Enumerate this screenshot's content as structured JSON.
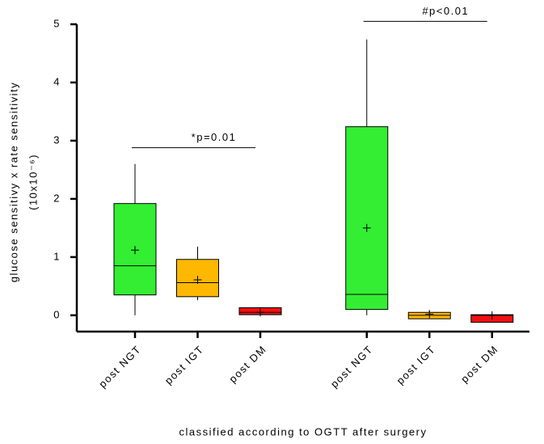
{
  "chart_data": {
    "type": "box",
    "ylabel": "glucose sensitivy x rate sensitivity",
    "ylabel2": "(10x10⁻⁶)",
    "xlabel": "classified according to OGTT after surgery",
    "categories": [
      "post NGT",
      "post IGT",
      "post DM",
      "post NGT",
      "post IGT",
      "post DM"
    ],
    "boxes": [
      {
        "min": 0,
        "q1": 0.35,
        "median": 0.85,
        "q3": 1.92,
        "max": 2.6,
        "mean": 1.12,
        "color": "#33ee33"
      },
      {
        "min": 0.26,
        "q1": 0.32,
        "median": 0.56,
        "q3": 0.96,
        "max": 1.18,
        "mean": 0.61,
        "color": "#ffb800"
      },
      {
        "min": 0,
        "q1": 0.01,
        "median": 0.05,
        "q3": 0.13,
        "max": 0.14,
        "mean": 0.05,
        "color": "#ee1111"
      },
      {
        "min": 0,
        "q1": 0.1,
        "median": 0.36,
        "q3": 3.24,
        "max": 4.74,
        "mean": 1.5,
        "color": "#33ee33"
      },
      {
        "min": -0.06,
        "q1": -0.06,
        "median": 0,
        "q3": 0.05,
        "max": 0.08,
        "mean": 0.02,
        "color": "#ffb800"
      },
      {
        "min": -0.12,
        "q1": -0.12,
        "median": 0,
        "q3": 0.01,
        "max": 0.03,
        "mean": 0,
        "color": "#ee1111"
      }
    ],
    "annotations": [
      {
        "text": "*p=0.01",
        "from": 0,
        "to": 2,
        "y": 2.88
      },
      {
        "text": "#p<0.01",
        "from": 3,
        "to": 5,
        "y": 5.05
      }
    ],
    "ylim": [
      -0.28,
      5
    ],
    "yticks": [
      0,
      1,
      2,
      3,
      4,
      5
    ]
  }
}
